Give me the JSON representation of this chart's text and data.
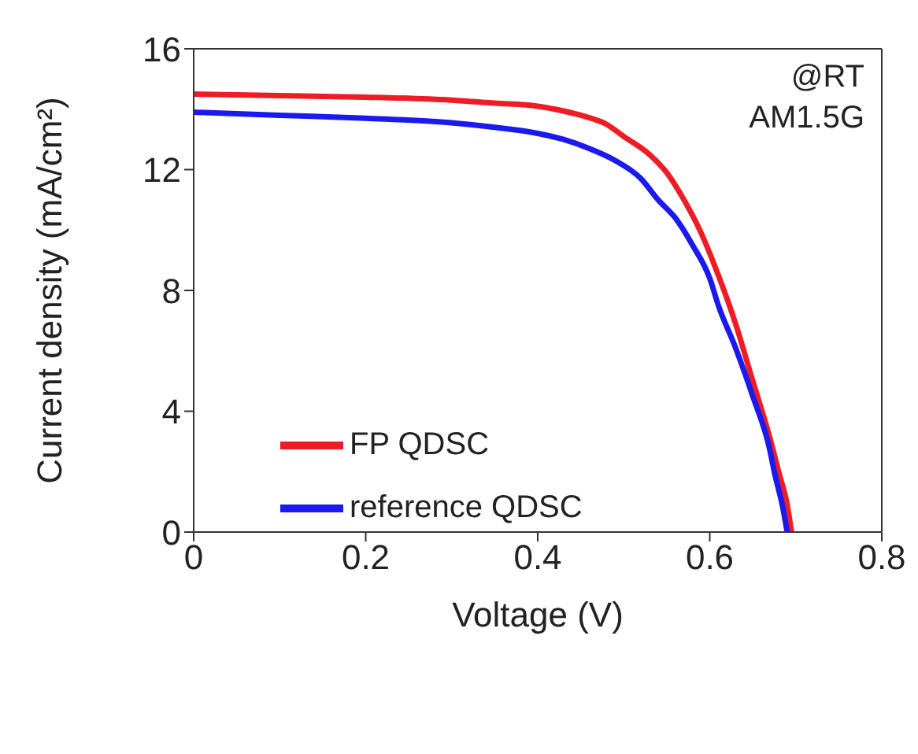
{
  "chart_data": {
    "type": "line",
    "xlabel": "Voltage (V)",
    "ylabel": "Current density (mA/cm²)",
    "xlim": [
      0,
      0.8
    ],
    "xticks": [
      0,
      0.2,
      0.4,
      0.6,
      0.8
    ],
    "ylim": [
      0,
      16
    ],
    "yticks": [
      0,
      4,
      8,
      12,
      16
    ],
    "grid": false,
    "legend": "bottom left",
    "marker": "none",
    "line_style": "solid",
    "annotations": [
      "@RT",
      "AM1.5G"
    ],
    "series": [
      {
        "name": "FP QDSC",
        "color": "#ee1c25",
        "x": [
          0,
          0.1,
          0.2,
          0.3,
          0.35,
          0.4,
          0.42,
          0.45,
          0.48,
          0.5,
          0.53,
          0.55,
          0.57,
          0.59,
          0.61,
          0.63,
          0.65,
          0.67,
          0.68,
          0.69,
          0.695
        ],
        "values": [
          14.5,
          14.45,
          14.4,
          14.3,
          14.2,
          14.1,
          14.0,
          13.8,
          13.5,
          13.1,
          12.5,
          11.9,
          11.0,
          9.9,
          8.5,
          6.9,
          5.0,
          3.1,
          2.0,
          0.9,
          0
        ]
      },
      {
        "name": "reference QDSC",
        "color": "#1a1aee",
        "x": [
          0,
          0.1,
          0.2,
          0.3,
          0.35,
          0.4,
          0.43,
          0.46,
          0.49,
          0.52,
          0.54,
          0.56,
          0.58,
          0.6,
          0.61,
          0.63,
          0.65,
          0.67,
          0.675,
          0.685,
          0.69
        ],
        "values": [
          13.9,
          13.8,
          13.7,
          13.55,
          13.4,
          13.2,
          13.0,
          12.7,
          12.3,
          11.7,
          11.0,
          10.4,
          9.5,
          8.4,
          7.5,
          6.1,
          4.5,
          2.7,
          2.0,
          0.8,
          0
        ]
      }
    ]
  }
}
